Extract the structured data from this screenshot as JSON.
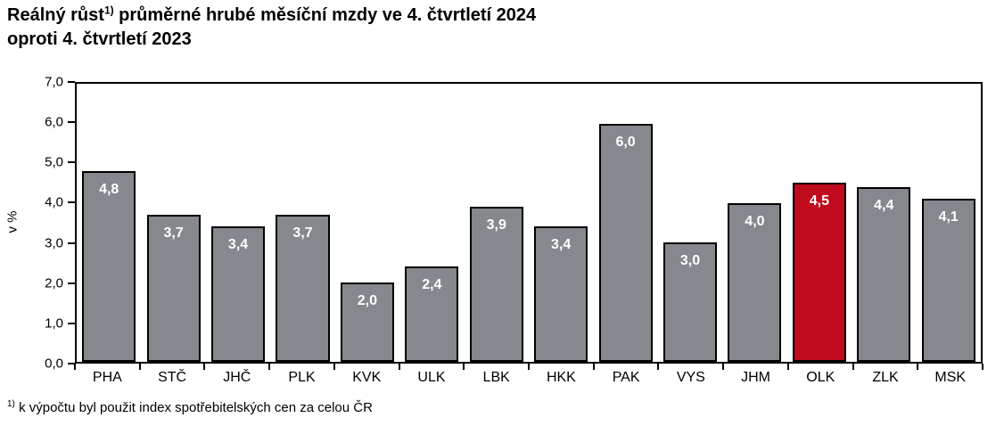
{
  "title": {
    "line1_pre": "Reálný růst",
    "line1_sup": "1)",
    "line1_post": " průměrné hrubé měsíční mzdy ve 4. čtvrtletí 2024",
    "line2": "oproti 4. čtvrtletí 2023"
  },
  "chart_data": {
    "type": "bar",
    "categories": [
      "PHA",
      "STČ",
      "JHČ",
      "PLK",
      "KVK",
      "ULK",
      "LBK",
      "HKK",
      "PAK",
      "VYS",
      "JHM",
      "OLK",
      "ZLK",
      "MSK"
    ],
    "values": [
      4.8,
      3.7,
      3.4,
      3.7,
      2.0,
      2.4,
      3.9,
      3.4,
      6.0,
      3.0,
      4.0,
      4.5,
      4.4,
      4.1
    ],
    "value_labels": [
      "4,8",
      "3,7",
      "3,4",
      "3,7",
      "2,0",
      "2,4",
      "3,9",
      "3,4",
      "6,0",
      "3,0",
      "4,0",
      "4,5",
      "4,4",
      "4,1"
    ],
    "highlighted_category": "OLK",
    "bar_color": "#85888D",
    "highlight_color": "#C00A1E",
    "bar_border_color": "#000000",
    "value_label_color": "#ffffff",
    "ylabel": "v %",
    "xlabel": "",
    "ylim": [
      0,
      7
    ],
    "ytick_step": 1.0,
    "ytick_labels": [
      "7,0",
      "6,0",
      "5,0",
      "4,0",
      "3,0",
      "2,0",
      "1,0",
      "0,0"
    ],
    "grid": "off",
    "legend": "none"
  },
  "footnote": {
    "sup": "1)",
    "text": " k výpočtu byl použit index spotřebitelských cen za celou ČR"
  }
}
